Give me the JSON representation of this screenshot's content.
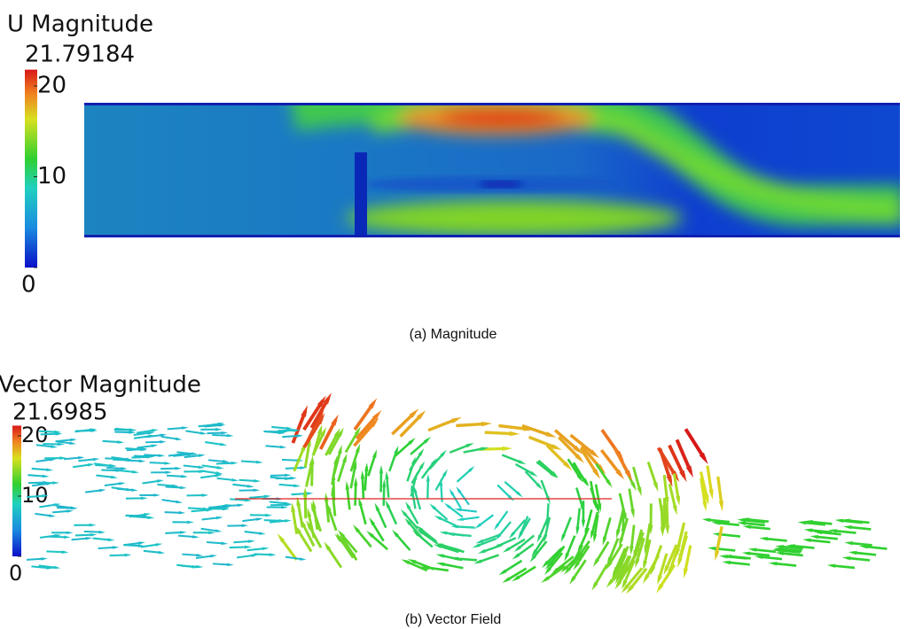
{
  "panels": [
    {
      "colorbar": {
        "title": "U Magnitude",
        "max": 21.79184,
        "ticks": [
          20,
          10,
          0
        ]
      },
      "caption": "(a)  Magnitude"
    },
    {
      "colorbar": {
        "title": "Vector Magnitude",
        "max": 21.6985,
        "ticks": [
          20,
          10,
          0
        ]
      },
      "caption": "(b)  Vector Field"
    }
  ]
}
